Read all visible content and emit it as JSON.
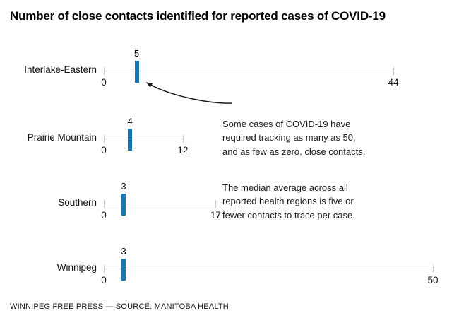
{
  "title": "Number of close contacts identified for reported cases of COVID-19",
  "footer": "WINNIPEG FREE PRESS — SOURCE: MANITOBA HEALTH",
  "annotation": {
    "para1": "Some cases of COVID-19 have\nrequired tracking as many as 50,\nand as few as zero, close contacts.",
    "para2": "The median average across all\nreported health regions is five or\nfewer contacts to trace per case."
  },
  "chart_data": {
    "type": "scatter",
    "subtype": "range-strip-plot",
    "description": "Each health region has a gray line spanning the min-max number of close contacts traced per case, with a blue tick at the median value labeled above it.",
    "categories": [
      "Interlake-Eastern",
      "Prairie Mountain",
      "Southern",
      "Winnipeg"
    ],
    "series": [
      {
        "region": "Interlake-Eastern",
        "min": 0,
        "max": 44,
        "median": 5
      },
      {
        "region": "Prairie Mountain",
        "min": 0,
        "max": 12,
        "median": 4
      },
      {
        "region": "Southern",
        "min": 0,
        "max": 17,
        "median": 3
      },
      {
        "region": "Winnipeg",
        "min": 0,
        "max": 50,
        "median": 3
      }
    ],
    "axis_note": "each row shows 0 at line start and its own maximum at line end; all rows share one linear scale",
    "legend_position": "none",
    "grid": false,
    "colors": {
      "median_tick": "#1878b4",
      "range_line": "#c8c8c8",
      "text": "#111111",
      "annotation_text": "#1a1a1a",
      "arrow": "#1a1a1a"
    }
  }
}
